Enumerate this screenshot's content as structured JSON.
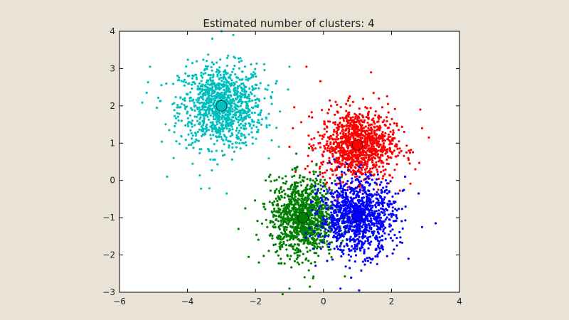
{
  "chart_data": {
    "type": "scatter",
    "title": "Estimated number of clusters: 4",
    "xlabel": "",
    "ylabel": "",
    "xlim": [
      -6,
      4
    ],
    "ylim": [
      -3,
      4
    ],
    "xticks": [
      -6,
      -4,
      -2,
      0,
      2,
      4
    ],
    "yticks": [
      -3,
      -2,
      -1,
      0,
      1,
      2,
      3,
      4
    ],
    "xtick_labels": [
      "−6",
      "−4",
      "−2",
      "0",
      "2",
      "4"
    ],
    "ytick_labels": [
      "−3",
      "−2",
      "−1",
      "0",
      "1",
      "2",
      "3",
      "4"
    ],
    "grid": false,
    "legend": "none",
    "background_color": "#e8e3d6",
    "plot_area_color": "#ffffff",
    "series": [
      {
        "color": "#00bfbf",
        "center": [
          -3.0,
          2.0
        ],
        "spread_x": 0.62,
        "spread_y": 0.55,
        "points": [
          [
            -5.1,
            3.05
          ],
          [
            -4.6,
            0.1
          ],
          [
            -3.6,
            -0.22
          ],
          [
            -2.85,
            -0.35
          ],
          [
            -3.0,
            4.0
          ],
          [
            -2.65,
            3.9
          ],
          [
            -1.0,
            3.05
          ],
          [
            -1.4,
            2.6
          ],
          [
            -5.2,
            2.35
          ],
          [
            -4.9,
            1.95
          ]
        ]
      },
      {
        "color": "#ff0000",
        "center": [
          1.0,
          0.95
        ],
        "spread_x": 0.55,
        "spread_y": 0.48,
        "points": [
          [
            2.7,
            0.3
          ],
          [
            3.1,
            1.15
          ],
          [
            2.85,
            1.9
          ],
          [
            1.4,
            2.9
          ],
          [
            -0.5,
            3.05
          ],
          [
            -1.0,
            0.9
          ],
          [
            -0.9,
            1.4
          ],
          [
            2.9,
            1.4
          ]
        ]
      },
      {
        "color": "#007f00",
        "center": [
          -0.6,
          -1.0
        ],
        "spread_x": 0.48,
        "spread_y": 0.52,
        "points": [
          [
            -2.5,
            -1.3
          ],
          [
            -2.2,
            -2.05
          ],
          [
            -1.9,
            -2.2
          ],
          [
            -1.2,
            -3.05
          ],
          [
            -1.0,
            -2.9
          ],
          [
            -2.3,
            -0.75
          ],
          [
            -1.7,
            0.0
          ],
          [
            -0.4,
            -2.85
          ]
        ]
      },
      {
        "color": "#0000ff",
        "center": [
          1.0,
          -0.95
        ],
        "spread_x": 0.55,
        "spread_y": 0.5,
        "points": [
          [
            3.3,
            -1.15
          ],
          [
            2.9,
            -1.25
          ],
          [
            2.5,
            -2.1
          ],
          [
            1.05,
            -2.95
          ],
          [
            0.5,
            -2.9
          ],
          [
            2.8,
            -0.35
          ],
          [
            2.4,
            0.1
          ]
        ]
      }
    ],
    "cluster_centers": [
      {
        "x": -3.0,
        "y": 2.0,
        "color": "#00bfbf"
      },
      {
        "x": 1.0,
        "y": 0.95,
        "color": "#ff0000"
      },
      {
        "x": -0.6,
        "y": -1.0,
        "color": "#007f00"
      },
      {
        "x": 1.0,
        "y": -0.95,
        "color": "#0000ff"
      }
    ]
  }
}
